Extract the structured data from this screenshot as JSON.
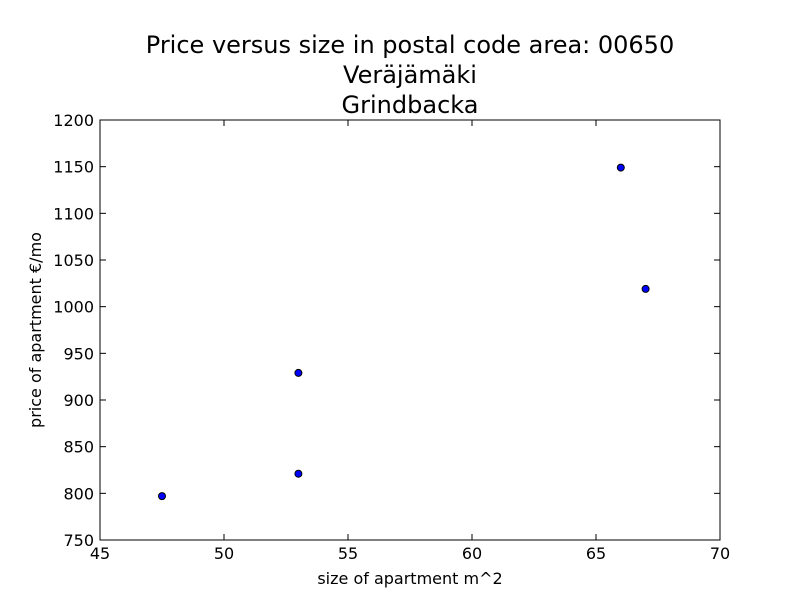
{
  "chart_data": {
    "type": "scatter",
    "title_lines": [
      "Price versus size in postal code area: 00650",
      "Veräjämäki",
      "Grindbacka"
    ],
    "xlabel": "size of apartment m^2",
    "ylabel": "price of apartment €/mo",
    "xlim": [
      45,
      70
    ],
    "ylim": [
      750,
      1200
    ],
    "xticks": [
      "45",
      "50",
      "55",
      "60",
      "65",
      "70"
    ],
    "yticks": [
      "750",
      "800",
      "850",
      "900",
      "950",
      "1000",
      "1050",
      "1100",
      "1150",
      "1200"
    ],
    "grid": false,
    "marker_color": "#0000ff",
    "marker_edge": "#000000",
    "points": [
      {
        "x": 47.5,
        "y": 797
      },
      {
        "x": 53,
        "y": 821
      },
      {
        "x": 53,
        "y": 929
      },
      {
        "x": 66,
        "y": 1149
      },
      {
        "x": 67,
        "y": 1019
      }
    ]
  }
}
